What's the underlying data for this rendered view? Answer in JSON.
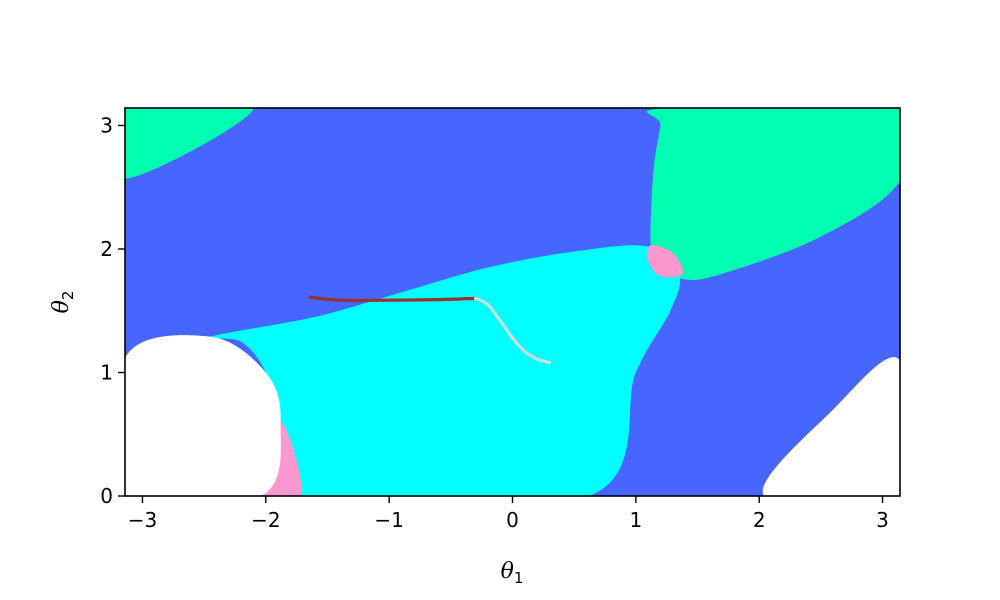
{
  "chart_data": {
    "type": "area",
    "title": "",
    "xlabel": "θ",
    "xlabel_subscript": "1",
    "ylabel": "θ",
    "ylabel_subscript": "2",
    "xlim": [
      -3.14159,
      3.14159
    ],
    "ylim": [
      0,
      3.14159
    ],
    "xticks": [
      -3,
      -2,
      -1,
      0,
      1,
      2,
      3
    ],
    "xtick_labels": [
      "−3",
      "−2",
      "−1",
      "0",
      "1",
      "2",
      "3"
    ],
    "yticks": [
      0,
      1,
      2,
      3
    ],
    "ytick_labels": [
      "0",
      "1",
      "2",
      "3"
    ],
    "grid": false,
    "colors": {
      "background_region": "#4766ff",
      "cyan_region": "#00ffff",
      "green_region": "#00ffb0",
      "pink_region": "#fa98cf",
      "white_region": "#ffffff",
      "trajectory_dark": "#9b2f2f",
      "trajectory_light": "#c9dede"
    },
    "regions": [
      {
        "id": "green-top-left",
        "color": "#00ffb0",
        "boundary": [
          [
            -3.14,
            3.14
          ],
          [
            -2.1,
            3.14
          ],
          [
            -3.14,
            2.57
          ]
        ]
      },
      {
        "id": "green-top-right",
        "color": "#00ffb0",
        "boundary": [
          [
            1.24,
            3.14
          ],
          [
            3.14,
            3.14
          ],
          [
            3.14,
            2.55
          ],
          [
            2.5,
            2.1
          ],
          [
            1.7,
            1.8
          ],
          [
            1.37,
            1.76
          ],
          [
            1.17,
            1.92
          ],
          [
            1.12,
            2.03
          ],
          [
            1.14,
            2.6
          ],
          [
            1.2,
            3.0
          ]
        ]
      },
      {
        "id": "cyan-central",
        "color": "#00ffff",
        "boundary": [
          [
            -2.45,
            1.29
          ],
          [
            -1.6,
            1.45
          ],
          [
            -0.9,
            1.65
          ],
          [
            -0.2,
            1.85
          ],
          [
            0.5,
            1.98
          ],
          [
            1.1,
            2.02
          ],
          [
            1.35,
            1.8
          ],
          [
            1.28,
            1.5
          ],
          [
            1.0,
            1.0
          ],
          [
            0.62,
            0.0
          ],
          [
            -1.71,
            0.0
          ],
          [
            -1.88,
            0.55
          ],
          [
            -2.0,
            1.0
          ],
          [
            -2.2,
            1.25
          ]
        ]
      },
      {
        "id": "pink-center-top",
        "color": "#fa98cf",
        "boundary": [
          [
            1.12,
            2.03
          ],
          [
            1.3,
            1.97
          ],
          [
            1.38,
            1.8
          ],
          [
            1.2,
            1.78
          ],
          [
            1.1,
            1.9
          ]
        ]
      },
      {
        "id": "pink-bottom-left",
        "color": "#fa98cf",
        "boundary": [
          [
            -1.88,
            0.6
          ],
          [
            -1.71,
            0.0
          ],
          [
            -2.04,
            0.0
          ]
        ]
      },
      {
        "id": "white-bottom-left",
        "color": "#ffffff",
        "boundary": [
          [
            -3.14,
            1.12
          ],
          [
            -2.45,
            1.29
          ],
          [
            -2.0,
            1.0
          ],
          [
            -1.88,
            0.6
          ],
          [
            -2.04,
            0.0
          ],
          [
            -3.14,
            0.0
          ]
        ]
      },
      {
        "id": "white-bottom-right",
        "color": "#ffffff",
        "boundary": [
          [
            2.04,
            0.0
          ],
          [
            2.6,
            0.7
          ],
          [
            3.14,
            1.1
          ],
          [
            3.14,
            0.0
          ]
        ]
      }
    ],
    "series": [
      {
        "id": "trajectory-dark",
        "color": "#9b2f2f",
        "x": [
          -1.64,
          -1.4,
          -1.0,
          -0.6,
          -0.3
        ],
        "y": [
          1.61,
          1.585,
          1.585,
          1.59,
          1.6
        ]
      },
      {
        "id": "trajectory-light",
        "color": "#c9dede",
        "x": [
          -0.3,
          -0.2,
          -0.1,
          0.0,
          0.1,
          0.2,
          0.3
        ],
        "y": [
          1.6,
          1.55,
          1.42,
          1.28,
          1.17,
          1.11,
          1.08
        ]
      }
    ]
  }
}
